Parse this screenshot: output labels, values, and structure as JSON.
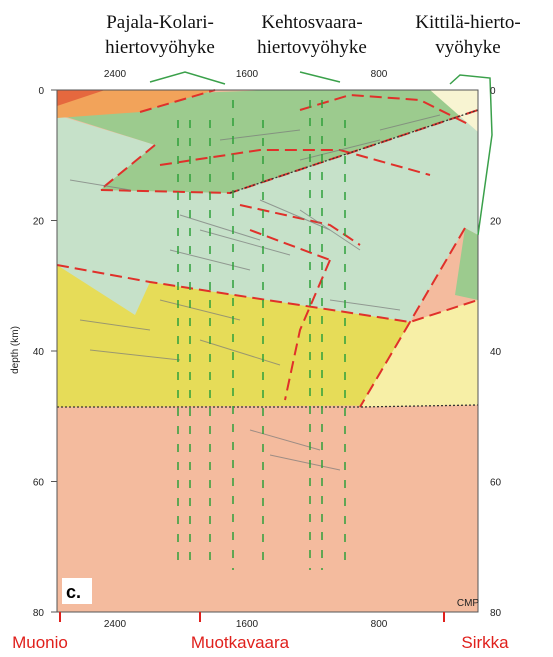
{
  "zones": [
    {
      "lines": [
        "Pajala-Kolari-",
        "hiertovyöhyke"
      ]
    },
    {
      "lines": [
        "Kehtosvaara-",
        "hiertovyöhyke"
      ]
    },
    {
      "lines": [
        "Kittilä-hierto-",
        "vyöhyke"
      ]
    }
  ],
  "axes": {
    "depth_label": "depth (km)",
    "depth_ticks": [
      0,
      20,
      40,
      60,
      80
    ],
    "cmp_ticks": [
      2400,
      1600,
      800
    ],
    "cmp_label": "CMP"
  },
  "panel_label": "c.",
  "locations": [
    "Muonio",
    "Muotkavaara",
    "Sirkka"
  ]
}
